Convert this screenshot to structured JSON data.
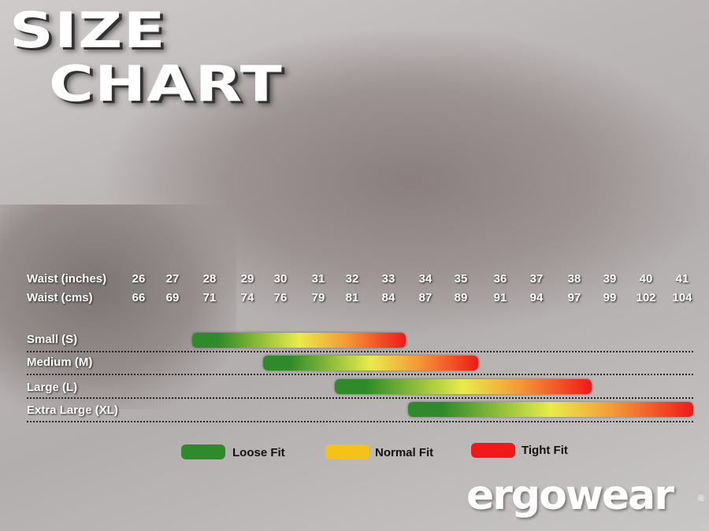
{
  "title_line1": "SIZE",
  "title_line2": "CHART",
  "chart_data": {
    "type": "bar",
    "subtype": "range",
    "row_labels": [
      "Waist (inches)",
      "Waist (cms)"
    ],
    "waist_inches": [
      "26",
      "27",
      "28",
      "29",
      "30",
      "31",
      "32",
      "33",
      "34",
      "35",
      "36",
      "37",
      "38",
      "39",
      "40",
      "41"
    ],
    "waist_cms": [
      "66",
      "69",
      "71",
      "74",
      "76",
      "79",
      "81",
      "84",
      "87",
      "89",
      "91",
      "94",
      "97",
      "99",
      "102",
      "104"
    ],
    "series": [
      {
        "name": "Small (S)",
        "start": 28,
        "end": 33
      },
      {
        "name": "Medium (M)",
        "start": 30,
        "end": 35
      },
      {
        "name": "Large (L)",
        "start": 32,
        "end": 38
      },
      {
        "name": "Extra Large (XL)",
        "start": 34,
        "end": 41
      }
    ],
    "legend": [
      {
        "label": "Loose Fit",
        "color": "#2e8a2a"
      },
      {
        "label": "Normal Fit",
        "color": "#f5c21a"
      },
      {
        "label": "Tight Fit",
        "color": "#f01a1a"
      }
    ]
  },
  "logo": "ergowear",
  "logo_mark": "®"
}
